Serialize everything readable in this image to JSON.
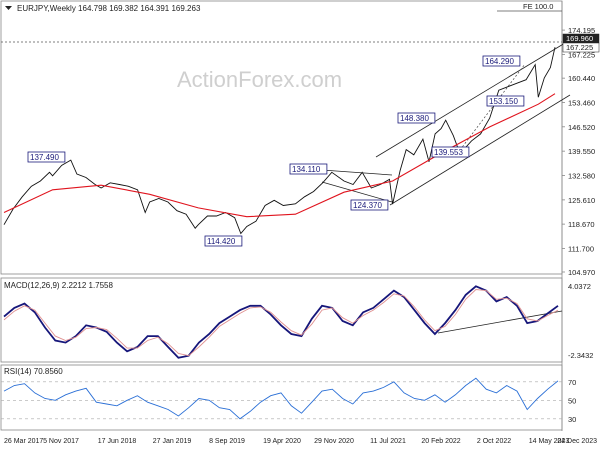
{
  "colors": {
    "price": "#111111",
    "sma": "#e0141e",
    "trendline": "#222222",
    "macd": "#16167a",
    "signal": "#e09090",
    "rsi": "#2a6fd6",
    "annotation_box": "#1b1b7a",
    "frame": "#888888"
  },
  "chart_data": [
    {
      "type": "line",
      "title": "EURJPY,Weekly  164.798 169.382 164.391 169.263",
      "watermark": "ActionForex.com",
      "xlabel": "",
      "ylabel": "",
      "grid": false,
      "ylim": [
        104.97,
        178.8
      ],
      "y_ticks": [
        "174.195",
        "167.225",
        "160.440",
        "153.460",
        "146.520",
        "139.550",
        "132.580",
        "125.610",
        "118.670",
        "111.700",
        "104.970"
      ],
      "x_ticks": [
        "26 Mar 2017",
        "5 Nov 2017",
        "17 Jun 2018",
        "27 Jan 2019",
        "8 Sep 2019",
        "19 Apr 2020",
        "29 Nov 2020",
        "11 Jul 2021",
        "20 Feb 2022",
        "2 Oct 2022",
        "14 May 2023",
        "24 Dec 2023"
      ],
      "fib_label": "FE 100.0",
      "fib_level": 178.0,
      "current_labels": [
        "169.960",
        "167.225"
      ],
      "annotations": [
        "137.490",
        "114.420",
        "134.110",
        "124.370",
        "148.380",
        "139.553",
        "164.290",
        "153.150"
      ],
      "series": [
        {
          "name": "",
          "x": [
            "2017-03-26",
            "2017-05-07",
            "2017-06-18",
            "2017-07-30",
            "2017-09-10",
            "2017-10-22",
            "2017-11-05",
            "2017-12-17",
            "2018-01-28",
            "2018-02-25",
            "2018-04-08",
            "2018-05-20",
            "2018-06-17",
            "2018-07-29",
            "2018-09-09",
            "2018-10-21",
            "2018-12-02",
            "2019-01-06",
            "2019-01-27",
            "2019-03-10",
            "2019-04-21",
            "2019-06-02",
            "2019-07-14",
            "2019-08-25",
            "2019-09-08",
            "2019-10-20",
            "2019-12-01",
            "2020-01-12",
            "2020-02-23",
            "2020-03-22",
            "2020-04-19",
            "2020-05-31",
            "2020-07-12",
            "2020-08-23",
            "2020-10-04",
            "2020-11-29",
            "2021-01-10",
            "2021-02-21",
            "2021-04-04",
            "2021-05-16",
            "2021-07-11",
            "2021-08-22",
            "2021-10-03",
            "2021-11-14",
            "2021-12-26",
            "2022-02-06",
            "2022-02-20",
            "2022-03-27",
            "2022-04-24",
            "2022-05-29",
            "2022-07-10",
            "2022-08-07",
            "2022-09-04",
            "2022-10-02",
            "2022-10-23",
            "2022-11-27",
            "2022-12-18",
            "2023-01-08",
            "2023-02-19",
            "2023-04-02",
            "2023-05-14",
            "2023-06-25",
            "2023-08-06",
            "2023-09-17",
            "2023-10-29",
            "2023-12-10",
            "2023-12-24",
            "2024-01-21",
            "2024-02-18",
            "2024-03-10"
          ],
          "values": [
            118.5,
            123.0,
            126.5,
            129.5,
            131.0,
            133.5,
            132.5,
            135.5,
            137.0,
            133.0,
            132.0,
            130.0,
            129.0,
            130.5,
            130.0,
            129.5,
            128.5,
            122.0,
            125.0,
            126.0,
            125.0,
            122.5,
            121.5,
            117.5,
            118.5,
            121.0,
            121.0,
            122.0,
            120.5,
            116.0,
            118.0,
            119.5,
            124.0,
            125.5,
            124.0,
            124.5,
            126.5,
            128.0,
            130.5,
            133.5,
            131.0,
            130.0,
            133.5,
            129.0,
            130.0,
            131.5,
            124.4,
            134.0,
            140.0,
            138.5,
            143.0,
            136.5,
            144.5,
            146.0,
            148.4,
            144.0,
            140.5,
            139.6,
            142.5,
            144.5,
            149.0,
            157.0,
            158.0,
            159.0,
            160.0,
            164.3,
            155.0,
            160.5,
            163.5,
            169.3
          ]
        },
        {
          "name": "",
          "x": [
            "2017-03-26",
            "2017-11-05",
            "2018-06-17",
            "2019-01-27",
            "2019-09-08",
            "2020-04-19",
            "2020-11-29",
            "2021-07-11",
            "2022-02-20",
            "2022-10-02",
            "2023-05-14",
            "2023-12-24",
            "2024-03-10"
          ],
          "values": [
            122.0,
            128.5,
            129.8,
            127.2,
            123.3,
            120.8,
            121.5,
            127.8,
            131.0,
            139.0,
            146.5,
            153.0,
            156.0
          ]
        }
      ]
    },
    {
      "type": "line",
      "title": "MACD(12,26,9) 2.2212 1.7558",
      "ylim": [
        -2.8,
        4.3
      ],
      "y_ticks": [
        "4.0372",
        "-2.3432"
      ],
      "series": [
        {
          "name": "",
          "values": [
            1.2,
            2.0,
            2.4,
            1.6,
            0.2,
            -1.0,
            -1.2,
            -0.6,
            0.4,
            0.2,
            -0.2,
            -1.2,
            -2.0,
            -1.6,
            -0.6,
            -0.6,
            -1.6,
            -2.6,
            -2.4,
            -1.2,
            -0.4,
            0.6,
            1.2,
            1.8,
            2.2,
            2.2,
            1.4,
            0.4,
            -0.4,
            -0.6,
            1.0,
            2.2,
            2.0,
            0.8,
            0.4,
            1.6,
            2.0,
            2.8,
            3.6,
            3.0,
            1.8,
            0.6,
            -0.4,
            0.6,
            1.8,
            3.2,
            4.0,
            3.6,
            2.6,
            3.0,
            2.2,
            0.6,
            0.8,
            1.5,
            2.2
          ]
        },
        {
          "name": "",
          "values": [
            0.9,
            1.7,
            2.2,
            1.8,
            0.6,
            -0.6,
            -1.0,
            -0.7,
            0.1,
            0.2,
            0.0,
            -0.8,
            -1.7,
            -1.7,
            -1.0,
            -0.7,
            -1.3,
            -2.2,
            -2.4,
            -1.6,
            -0.7,
            0.3,
            0.9,
            1.5,
            2.0,
            2.1,
            1.6,
            0.7,
            -0.1,
            -0.5,
            0.5,
            1.8,
            2.0,
            1.1,
            0.6,
            1.3,
            1.8,
            2.5,
            3.3,
            3.1,
            2.1,
            0.9,
            -0.1,
            0.3,
            1.4,
            2.8,
            3.7,
            3.6,
            2.8,
            2.9,
            2.4,
            1.0,
            0.8,
            1.3,
            1.8
          ]
        }
      ]
    },
    {
      "type": "line",
      "title": "RSI(14) 70.8560",
      "ylim": [
        20,
        85
      ],
      "y_ticks": [
        "70",
        "50",
        "30"
      ],
      "series": [
        {
          "name": "",
          "values": [
            60,
            66,
            68,
            58,
            52,
            50,
            56,
            60,
            63,
            48,
            46,
            44,
            50,
            55,
            48,
            44,
            40,
            33,
            42,
            52,
            50,
            42,
            40,
            30,
            38,
            48,
            55,
            58,
            44,
            36,
            48,
            60,
            62,
            52,
            46,
            58,
            60,
            64,
            70,
            58,
            52,
            50,
            56,
            48,
            56,
            66,
            74,
            62,
            58,
            66,
            60,
            40,
            52,
            62,
            71
          ]
        }
      ]
    }
  ]
}
